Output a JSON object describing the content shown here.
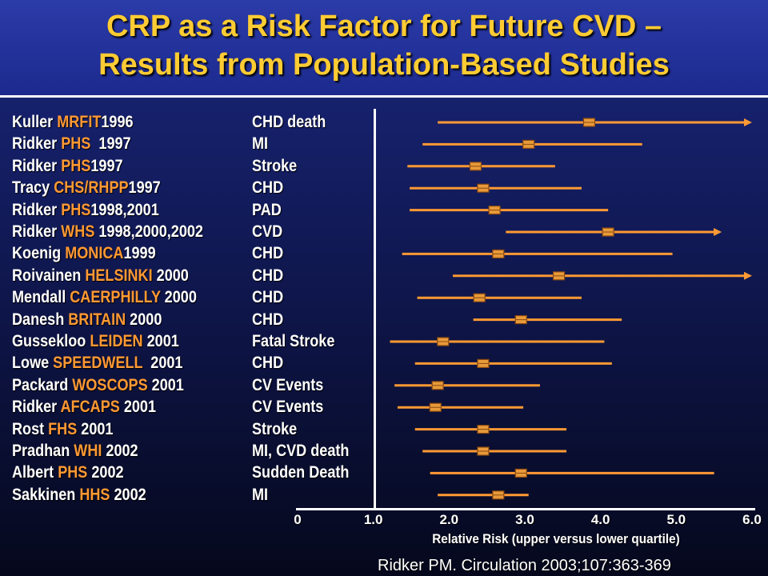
{
  "title": {
    "line1": "CRP as a Risk Factor for Future CVD –",
    "line2": "Results from Population-Based Studies"
  },
  "colors": {
    "title": "#ffcc33",
    "highlight": "#ff9933",
    "ci_line": "#ff9933",
    "marker_fill": "#e89a3a",
    "text": "#ffffff"
  },
  "chart_data": {
    "type": "forest",
    "xlabel": "Relative Risk (upper versus lower quartile)",
    "x_ticks": [
      "0",
      "1.0",
      "2.0",
      "3.0",
      "4.0",
      "5.0",
      "6.0"
    ],
    "xlim": [
      0,
      6
    ],
    "reference_line": 1.0,
    "studies": [
      {
        "pre": "Kuller ",
        "study": "MRFIT",
        "post": "1996",
        "outcome": "CHD death",
        "rr": 3.85,
        "lower": 1.85,
        "upper": 6.0,
        "arrow": true
      },
      {
        "pre": "Ridker ",
        "study": "PHS",
        "post": "  1997",
        "outcome": "MI",
        "rr": 3.05,
        "lower": 1.65,
        "upper": 4.55,
        "arrow": false
      },
      {
        "pre": "Ridker ",
        "study": "PHS",
        "post": "1997",
        "outcome": "Stroke",
        "rr": 2.35,
        "lower": 1.45,
        "upper": 3.4,
        "arrow": false
      },
      {
        "pre": "Tracy ",
        "study": "CHS/RHPP",
        "post": "1997",
        "outcome": "CHD",
        "rr": 2.45,
        "lower": 1.48,
        "upper": 3.75,
        "arrow": false
      },
      {
        "pre": "Ridker ",
        "study": "PHS",
        "post": "1998,2001",
        "outcome": "PAD",
        "rr": 2.6,
        "lower": 1.48,
        "upper": 4.1,
        "arrow": false
      },
      {
        "pre": "Ridker ",
        "study": "WHS",
        "post": " 1998,2000,2002",
        "outcome": "CVD",
        "rr": 4.1,
        "lower": 2.75,
        "upper": 5.6,
        "arrow": true
      },
      {
        "pre": "Koenig ",
        "study": "MONICA",
        "post": "1999",
        "outcome": "CHD",
        "rr": 2.65,
        "lower": 1.38,
        "upper": 4.95,
        "arrow": false
      },
      {
        "pre": "Roivainen ",
        "study": "HELSINKI",
        "post": " 2000",
        "outcome": "CHD",
        "rr": 3.45,
        "lower": 2.05,
        "upper": 6.0,
        "arrow": true
      },
      {
        "pre": "Mendall ",
        "study": "CAERPHILLY",
        "post": " 2000",
        "outcome": "CHD",
        "rr": 2.4,
        "lower": 1.58,
        "upper": 3.75,
        "arrow": false
      },
      {
        "pre": "Danesh ",
        "study": "BRITAIN",
        "post": " 2000",
        "outcome": "CHD",
        "rr": 2.95,
        "lower": 2.32,
        "upper": 4.28,
        "arrow": false
      },
      {
        "pre": "Gussekloo ",
        "study": "LEIDEN",
        "post": " 2001",
        "outcome": "Fatal Stroke",
        "rr": 1.92,
        "lower": 1.22,
        "upper": 4.05,
        "arrow": false
      },
      {
        "pre": "Lowe ",
        "study": "SPEEDWELL",
        "post": "  2001",
        "outcome": "CHD",
        "rr": 2.45,
        "lower": 1.55,
        "upper": 4.15,
        "arrow": false
      },
      {
        "pre": "Packard ",
        "study": "WOSCOPS",
        "post": " 2001",
        "outcome": "CV Events",
        "rr": 1.85,
        "lower": 1.28,
        "upper": 3.2,
        "arrow": false
      },
      {
        "pre": "Ridker ",
        "study": "AFCAPS",
        "post": " 2001",
        "outcome": "CV Events",
        "rr": 1.82,
        "lower": 1.32,
        "upper": 2.98,
        "arrow": false
      },
      {
        "pre": "Rost ",
        "study": "FHS",
        "post": " 2001",
        "outcome": "Stroke",
        "rr": 2.45,
        "lower": 1.55,
        "upper": 3.55,
        "arrow": false
      },
      {
        "pre": "Pradhan ",
        "study": "WHI",
        "post": " 2002",
        "outcome": "MI, CVD death",
        "rr": 2.45,
        "lower": 1.65,
        "upper": 3.55,
        "arrow": false
      },
      {
        "pre": "Albert ",
        "study": "PHS",
        "post": " 2002",
        "outcome": "Sudden Death",
        "rr": 2.95,
        "lower": 1.75,
        "upper": 5.5,
        "arrow": false
      },
      {
        "pre": "Sakkinen ",
        "study": "HHS",
        "post": " 2002",
        "outcome": "MI",
        "rr": 2.65,
        "lower": 1.85,
        "upper": 3.05,
        "arrow": false
      }
    ]
  },
  "citation": "Ridker PM. Circulation 2003;107:363-369"
}
